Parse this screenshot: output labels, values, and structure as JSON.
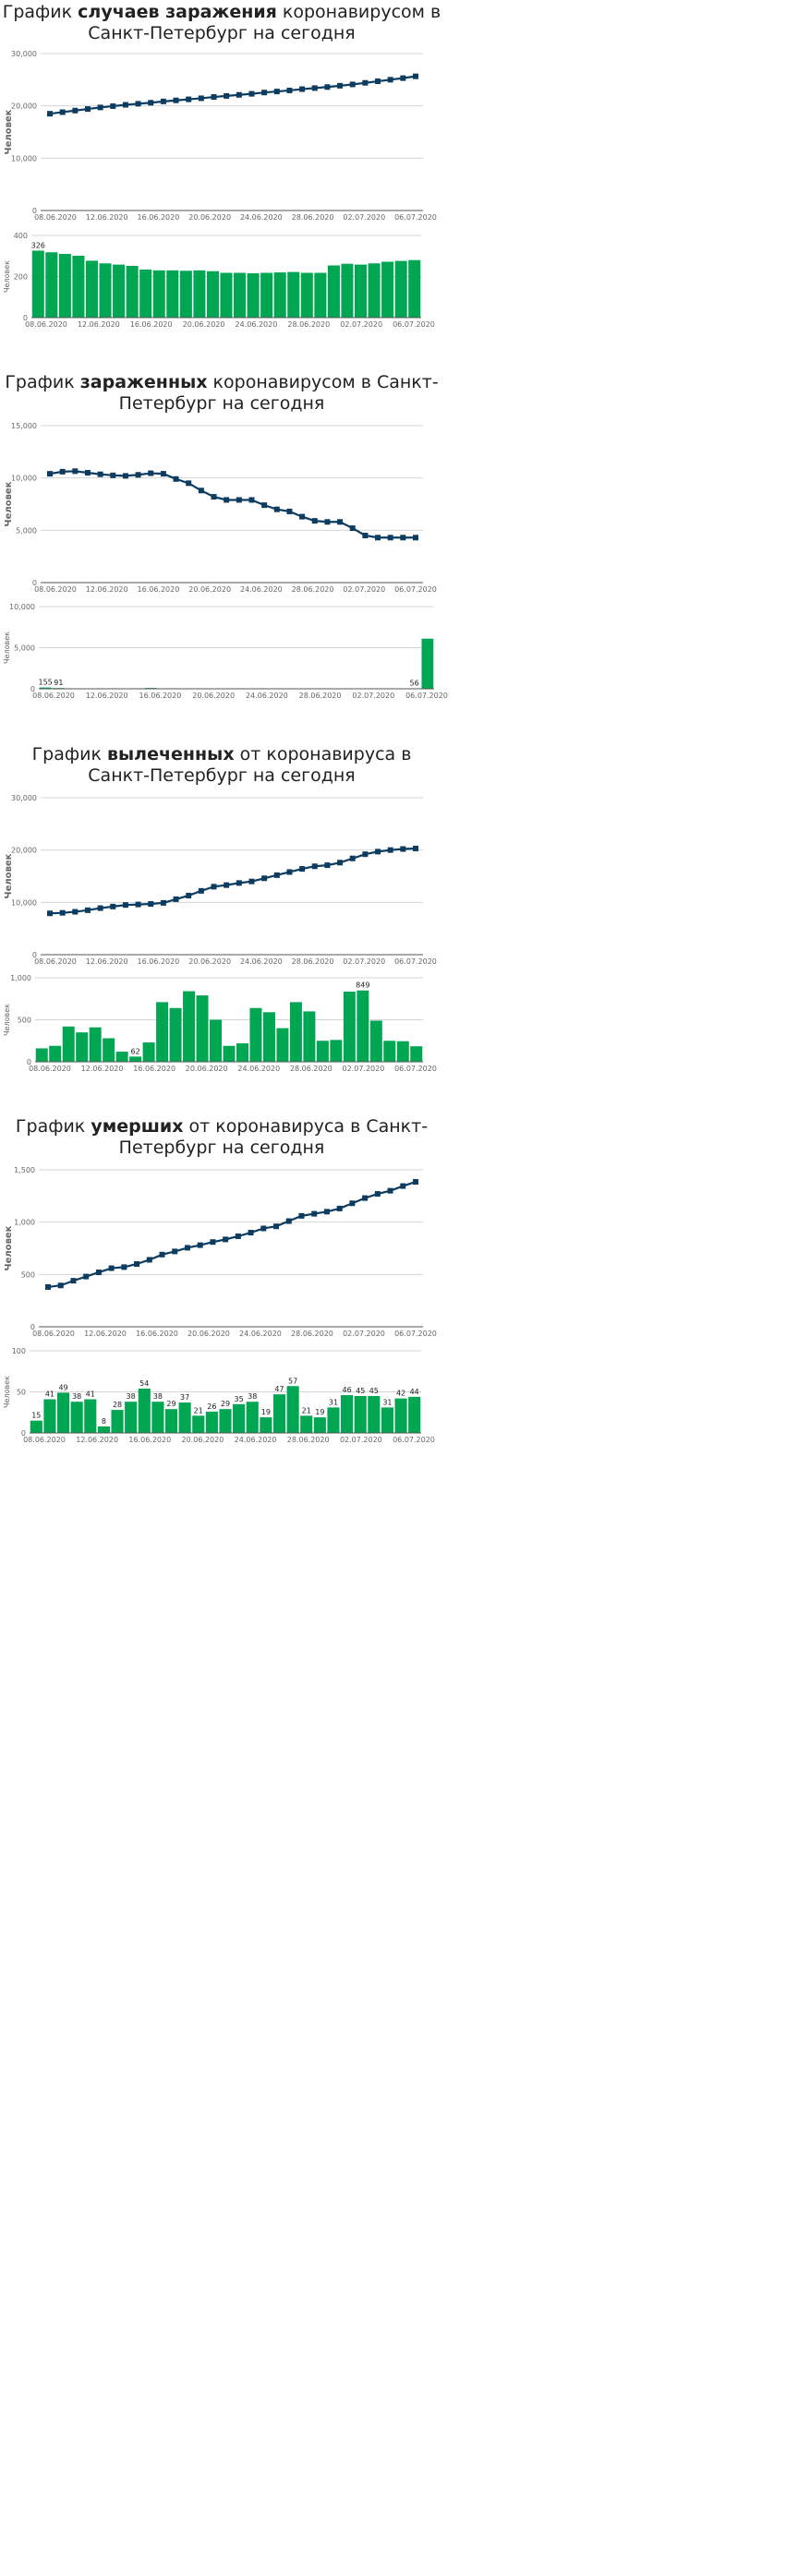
{
  "colors": {
    "line": "#0d3c61",
    "bar": "#00a651",
    "grid": "#d4d4d4",
    "axis": "#555555",
    "text": "#222222",
    "muted": "#666666"
  },
  "sections": [
    {
      "title_before": "График ",
      "title_bold": "случаев заражения",
      "title_after": " коронавирусом в Санкт-Петербург на сегодня"
    },
    {
      "title_before": "График ",
      "title_bold": "зараженных",
      "title_after": " коронавирусом в Санкт-Петербург на сегодня"
    },
    {
      "title_before": "График ",
      "title_bold": "вылеченных",
      "title_after": " от коронавируса в Санкт-Петербург на сегодня"
    },
    {
      "title_before": "График ",
      "title_bold": "умерших",
      "title_after": " от коронавируса в Санкт-Петербург на сегодня"
    }
  ],
  "chart_data": [
    {
      "id": "cases-total",
      "type": "line",
      "title": "",
      "xlabel": "",
      "ylabel": "Человек",
      "ylim": [
        0,
        30000
      ],
      "yticks": [
        "0",
        "10,000",
        "20,000",
        "30,000"
      ],
      "ytick_values": [
        0,
        10000,
        20000,
        30000
      ],
      "xtick_labels": [
        "08.06.2020",
        "12.06.2020",
        "16.06.2020",
        "20.06.2020",
        "24.06.2020",
        "28.06.2020",
        "02.07.2020",
        "06.07.2020"
      ],
      "x": [
        "08.06",
        "09.06",
        "10.06",
        "11.06",
        "12.06",
        "13.06",
        "14.06",
        "15.06",
        "16.06",
        "17.06",
        "18.06",
        "19.06",
        "20.06",
        "21.06",
        "22.06",
        "23.06",
        "24.06",
        "25.06",
        "26.06",
        "27.06",
        "28.06",
        "29.06",
        "30.06",
        "01.07",
        "02.07",
        "03.07",
        "04.07",
        "05.07",
        "06.07",
        "07.07"
      ],
      "values": [
        18500,
        18800,
        19100,
        19400,
        19700,
        19950,
        20200,
        20400,
        20600,
        20850,
        21050,
        21250,
        21450,
        21700,
        21900,
        22100,
        22300,
        22550,
        22750,
        22950,
        23200,
        23400,
        23600,
        23850,
        24100,
        24400,
        24700,
        25000,
        25300,
        25650
      ],
      "grid": true,
      "legend": "none"
    },
    {
      "id": "cases-daily",
      "type": "bar",
      "title": "",
      "ylabel": "Человек",
      "ylim": [
        0,
        400
      ],
      "yticks": [
        "0",
        "200",
        "400"
      ],
      "ytick_values": [
        0,
        200,
        400
      ],
      "xtick_labels": [
        "08.06.2020",
        "12.06.2020",
        "16.06.2020",
        "20.06.2020",
        "24.06.2020",
        "28.06.2020",
        "02.07.2020",
        "06.07.2020"
      ],
      "values": [
        326,
        318,
        310,
        301,
        277,
        264,
        258,
        252,
        234,
        230,
        230,
        228,
        230,
        226,
        218,
        218,
        216,
        218,
        220,
        222,
        218,
        218,
        254,
        262,
        258,
        264,
        272,
        276,
        280
      ],
      "data_labels": [
        {
          "index": 0,
          "text": "326"
        }
      ],
      "grid": true,
      "legend": "none"
    },
    {
      "id": "active-total",
      "type": "line",
      "title": "",
      "ylabel": "Человек",
      "ylim": [
        0,
        15000
      ],
      "yticks": [
        "0",
        "5,000",
        "10,000",
        "15,000"
      ],
      "ytick_values": [
        0,
        5000,
        10000,
        15000
      ],
      "xtick_labels": [
        "08.06.2020",
        "12.06.2020",
        "16.06.2020",
        "20.06.2020",
        "24.06.2020",
        "28.06.2020",
        "02.07.2020",
        "06.07.2020"
      ],
      "values": [
        10400,
        10600,
        10650,
        10500,
        10350,
        10250,
        10200,
        10300,
        10450,
        10400,
        9900,
        9500,
        8800,
        8200,
        7900,
        7900,
        7900,
        7400,
        7000,
        6800,
        6300,
        5900,
        5800,
        5800,
        5200,
        4500,
        4300,
        4300,
        4300,
        4300
      ],
      "grid": true,
      "legend": "none"
    },
    {
      "id": "active-daily",
      "type": "bar",
      "title": "",
      "ylabel": "Человек",
      "ylim": [
        0,
        10000
      ],
      "yticks": [
        "0",
        "5,000",
        "10,000"
      ],
      "ytick_values": [
        0,
        5000,
        10000
      ],
      "xtick_labels": [
        "08.06.2020",
        "12.06.2020",
        "16.06.2020",
        "20.06.2020",
        "24.06.2020",
        "28.06.2020",
        "02.07.2020",
        "06.07.2020"
      ],
      "values": [
        155,
        91,
        0,
        0,
        0,
        0,
        0,
        60,
        100,
        0,
        0,
        0,
        0,
        0,
        0,
        0,
        0,
        0,
        0,
        0,
        0,
        0,
        0,
        0,
        0,
        0,
        0,
        0,
        56,
        6100
      ],
      "data_labels": [
        {
          "index": 0,
          "text": "155"
        },
        {
          "index": 1,
          "text": "91"
        },
        {
          "index": 28,
          "text": "56"
        }
      ],
      "grid": true,
      "legend": "none"
    },
    {
      "id": "recovered-total",
      "type": "line",
      "title": "",
      "ylabel": "Человек",
      "ylim": [
        0,
        30000
      ],
      "yticks": [
        "0",
        "10,000",
        "20,000",
        "30,000"
      ],
      "ytick_values": [
        0,
        10000,
        20000,
        30000
      ],
      "xtick_labels": [
        "08.06.2020",
        "12.06.2020",
        "16.06.2020",
        "20.06.2020",
        "24.06.2020",
        "28.06.2020",
        "02.07.2020",
        "06.07.2020"
      ],
      "values": [
        7900,
        8000,
        8200,
        8500,
        8900,
        9200,
        9500,
        9600,
        9700,
        9900,
        10600,
        11300,
        12200,
        13000,
        13300,
        13700,
        14000,
        14600,
        15200,
        15800,
        16400,
        16900,
        17100,
        17600,
        18400,
        19200,
        19700,
        20000,
        20200,
        20300
      ],
      "grid": true,
      "legend": "none"
    },
    {
      "id": "recovered-daily",
      "type": "bar",
      "title": "",
      "ylabel": "Человек",
      "ylim": [
        0,
        1000
      ],
      "yticks": [
        "0",
        "500",
        "1,000"
      ],
      "ytick_values": [
        0,
        500,
        1000
      ],
      "xtick_labels": [
        "08.06.2020",
        "12.06.2020",
        "16.06.2020",
        "20.06.2020",
        "24.06.2020",
        "28.06.2020",
        "02.07.2020",
        "06.07.2020"
      ],
      "values": [
        160,
        190,
        420,
        350,
        410,
        280,
        120,
        62,
        230,
        710,
        640,
        840,
        790,
        500,
        190,
        220,
        640,
        590,
        400,
        710,
        600,
        250,
        260,
        835,
        849,
        490,
        250,
        245,
        185
      ],
      "data_labels": [
        {
          "index": 7,
          "text": "62"
        },
        {
          "index": 24,
          "text": "849"
        }
      ],
      "grid": true,
      "legend": "none"
    },
    {
      "id": "deaths-total",
      "type": "line",
      "title": "",
      "ylabel": "Человек",
      "ylim": [
        0,
        1500
      ],
      "yticks": [
        "0",
        "500",
        "1,000",
        "1,500"
      ],
      "ytick_values": [
        0,
        500,
        1000,
        1500
      ],
      "xtick_labels": [
        "08.06.2020",
        "12.06.2020",
        "16.06.2020",
        "20.06.2020",
        "24.06.2020",
        "28.06.2020",
        "02.07.2020",
        "06.07.2020"
      ],
      "values": [
        380,
        395,
        440,
        480,
        520,
        560,
        570,
        600,
        640,
        690,
        720,
        755,
        780,
        810,
        835,
        865,
        900,
        940,
        960,
        1010,
        1060,
        1080,
        1100,
        1130,
        1180,
        1230,
        1270,
        1300,
        1345,
        1385
      ],
      "grid": true,
      "legend": "none"
    },
    {
      "id": "deaths-daily",
      "type": "bar",
      "title": "",
      "ylabel": "Человек",
      "ylim": [
        0,
        100
      ],
      "yticks": [
        "0",
        "50",
        "100"
      ],
      "ytick_values": [
        0,
        50,
        100
      ],
      "xtick_labels": [
        "08.06.2020",
        "12.06.2020",
        "16.06.2020",
        "20.06.2020",
        "24.06.2020",
        "28.06.2020",
        "02.07.2020",
        "06.07.2020"
      ],
      "values": [
        15,
        41,
        49,
        38,
        41,
        8,
        28,
        38,
        54,
        38,
        29,
        37,
        21,
        26,
        29,
        35,
        38,
        19,
        47,
        57,
        21,
        19,
        31,
        46,
        45,
        45,
        31,
        42,
        44
      ],
      "data_labels": [
        {
          "index": 0,
          "text": "15"
        },
        {
          "index": 1,
          "text": "41"
        },
        {
          "index": 2,
          "text": "49"
        },
        {
          "index": 3,
          "text": "38"
        },
        {
          "index": 4,
          "text": "41"
        },
        {
          "index": 5,
          "text": "8"
        },
        {
          "index": 6,
          "text": "28"
        },
        {
          "index": 7,
          "text": "38"
        },
        {
          "index": 8,
          "text": "54"
        },
        {
          "index": 9,
          "text": "38"
        },
        {
          "index": 10,
          "text": "29"
        },
        {
          "index": 11,
          "text": "37"
        },
        {
          "index": 12,
          "text": "21"
        },
        {
          "index": 13,
          "text": "26"
        },
        {
          "index": 14,
          "text": "29"
        },
        {
          "index": 15,
          "text": "35"
        },
        {
          "index": 16,
          "text": "38"
        },
        {
          "index": 17,
          "text": "19"
        },
        {
          "index": 18,
          "text": "47"
        },
        {
          "index": 19,
          "text": "57"
        },
        {
          "index": 20,
          "text": "21"
        },
        {
          "index": 21,
          "text": "19"
        },
        {
          "index": 22,
          "text": "31"
        },
        {
          "index": 23,
          "text": "46"
        },
        {
          "index": 24,
          "text": "45"
        },
        {
          "index": 25,
          "text": "45"
        },
        {
          "index": 26,
          "text": "31"
        },
        {
          "index": 27,
          "text": "42"
        },
        {
          "index": 28,
          "text": "44"
        }
      ],
      "grid": true,
      "legend": "none"
    }
  ]
}
